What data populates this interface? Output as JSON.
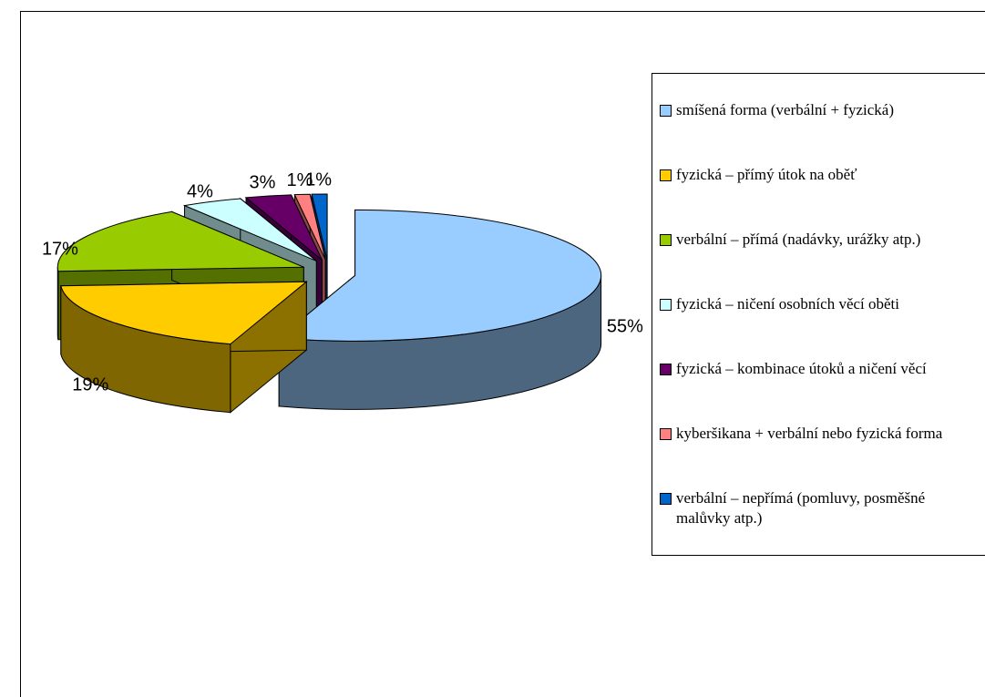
{
  "chart_data": {
    "type": "pie",
    "categories": [
      "smíšená forma (verbální + fyzická)",
      "fyzická – přímý útok na oběť",
      "verbální – přímá (nadávky, urážky atp.)",
      "fyzická – ničení osobních věcí oběti",
      "fyzická – kombinace útoků a ničení věcí",
      "kyberšikana + verbální nebo fyzická forma",
      "verbální – nepřímá (pomluvy, posměšné malůvky atp.)"
    ],
    "values": [
      55,
      19,
      17,
      4,
      3,
      1,
      1
    ],
    "value_labels": [
      "55%",
      "19%",
      "17%",
      "4%",
      "3%",
      "1%",
      "1%"
    ],
    "colors": [
      "#99ccff",
      "#ffcc00",
      "#99cc00",
      "#ccffff",
      "#660066",
      "#ff8080",
      "#0066cc"
    ],
    "legend": "right"
  }
}
